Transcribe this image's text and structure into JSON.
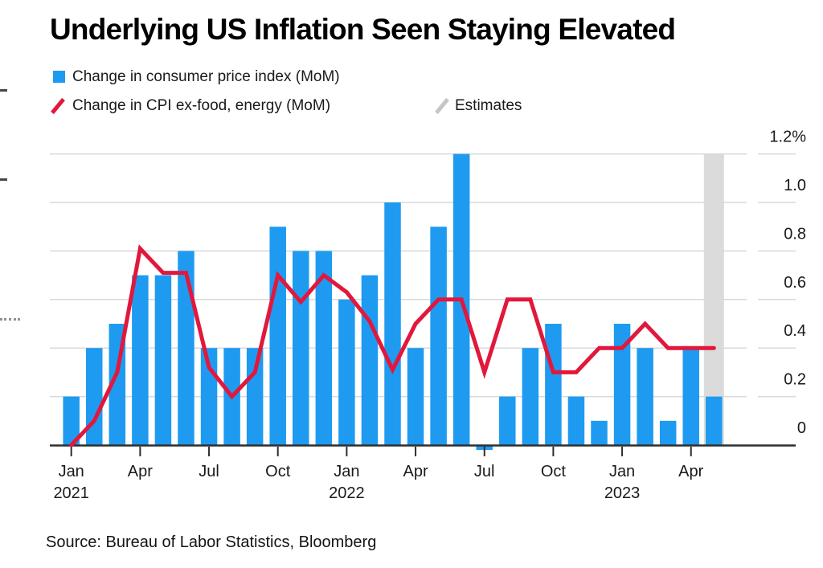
{
  "title": "Underlying US Inflation Seen Staying Elevated",
  "source_note": "Source: Bureau of Labor Statistics, Bloomberg",
  "chart_data": {
    "type": "combo",
    "title": "Underlying US Inflation Seen Staying Elevated",
    "months": [
      "Jan 2021",
      "Feb 2021",
      "Mar 2021",
      "Apr 2021",
      "May 2021",
      "Jun 2021",
      "Jul 2021",
      "Aug 2021",
      "Sep 2021",
      "Oct 2021",
      "Nov 2021",
      "Dec 2021",
      "Jan 2022",
      "Feb 2022",
      "Mar 2022",
      "Apr 2022",
      "May 2022",
      "Jun 2022",
      "Jul 2022",
      "Aug 2022",
      "Sep 2022",
      "Oct 2022",
      "Nov 2022",
      "Dec 2022",
      "Jan 2023",
      "Feb 2023",
      "Mar 2023",
      "Apr 2023",
      "May 2023"
    ],
    "series": [
      {
        "name": "Change in consumer price index (MoM)",
        "type": "bar",
        "color": "#1E9BF0",
        "values": [
          0.2,
          0.4,
          0.5,
          0.7,
          0.7,
          0.8,
          0.4,
          0.4,
          0.4,
          0.9,
          0.8,
          0.8,
          0.6,
          0.7,
          1.0,
          0.4,
          0.9,
          1.2,
          -0.02,
          0.2,
          0.4,
          0.5,
          0.2,
          0.1,
          0.5,
          0.4,
          0.1,
          0.4,
          0.2
        ]
      },
      {
        "name": "Change in CPI ex-food, energy (MoM)",
        "type": "line",
        "color": "#E2173C",
        "values": [
          0.0,
          0.1,
          0.3,
          0.81,
          0.71,
          0.71,
          0.32,
          0.2,
          0.3,
          0.7,
          0.59,
          0.7,
          0.63,
          0.51,
          0.31,
          0.5,
          0.6,
          0.6,
          0.3,
          0.6,
          0.6,
          0.3,
          0.3,
          0.4,
          0.4,
          0.5,
          0.4,
          0.4,
          0.4
        ]
      }
    ],
    "estimates": {
      "label": "Estimates",
      "month_index": 28,
      "band_color": "#DBDBDB",
      "legend_slash_color": "#C6C6C6"
    },
    "y_axis": {
      "unit": "%",
      "ylim": [
        -0.05,
        1.25
      ],
      "ticks": [
        {
          "label": "1.2%",
          "value": 1.2
        },
        {
          "label": "1.0",
          "value": 1.0
        },
        {
          "label": "0.8",
          "value": 0.8
        },
        {
          "label": "0.6",
          "value": 0.6
        },
        {
          "label": "0.4",
          "value": 0.4
        },
        {
          "label": "0.2",
          "value": 0.2
        },
        {
          "label": "0",
          "value": 0
        }
      ]
    },
    "x_axis": {
      "ticks": [
        {
          "month": "Jan",
          "year": "2021",
          "index": 0
        },
        {
          "month": "Apr",
          "year": "",
          "index": 3
        },
        {
          "month": "Jul",
          "year": "",
          "index": 6
        },
        {
          "month": "Oct",
          "year": "",
          "index": 9
        },
        {
          "month": "Jan",
          "year": "2022",
          "index": 12
        },
        {
          "month": "Apr",
          "year": "",
          "index": 15
        },
        {
          "month": "Jul",
          "year": "",
          "index": 18
        },
        {
          "month": "Oct",
          "year": "",
          "index": 21
        },
        {
          "month": "Jan",
          "year": "2023",
          "index": 24
        },
        {
          "month": "Apr",
          "year": "",
          "index": 27
        }
      ]
    },
    "grid": true,
    "legend_position": "top-left",
    "grid_color": "#D9D9D9",
    "axis_color": "#2E2E2E",
    "label_color": "#1A1A1A"
  }
}
